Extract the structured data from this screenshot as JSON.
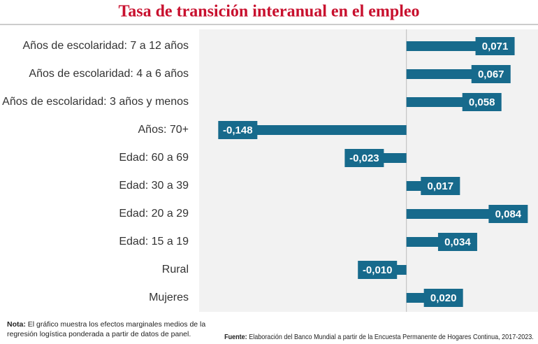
{
  "chart_data": {
    "type": "hbar",
    "title": "Tasa de transición interanual en el empleo",
    "categories": [
      "Años de escolaridad: 7 a 12 años",
      "Años de escolaridad: 4 a 6 años",
      "Años de escolaridad: 3 años y menos",
      "Años: 70+",
      "Edad: 60 a 69",
      "Edad: 30 a 39",
      "Edad: 20 a 29",
      "Edad: 15 a 19",
      "Rural",
      "Mujeres"
    ],
    "values": [
      0.071,
      0.067,
      0.058,
      -0.148,
      -0.023,
      0.017,
      0.084,
      0.034,
      -0.01,
      0.02
    ],
    "value_labels": [
      "0,071",
      "0,067",
      "0,058",
      "-0,148",
      "-0,023",
      "0,017",
      "0,084",
      "0,034",
      "-0,010",
      "0,020"
    ],
    "color": "#176a8c",
    "xlim": [
      -0.2,
      0.13
    ],
    "note": {
      "label": "Nota:",
      "text": "El gráfico muestra los efectos marginales medios de la regresión logística ponderada a partir de datos de panel."
    },
    "source": {
      "label": "Fuente:",
      "text": "Elaboración del Banco Mundial a partir de la Encuesta Permanente de Hogares Continua, 2017-2023."
    }
  }
}
